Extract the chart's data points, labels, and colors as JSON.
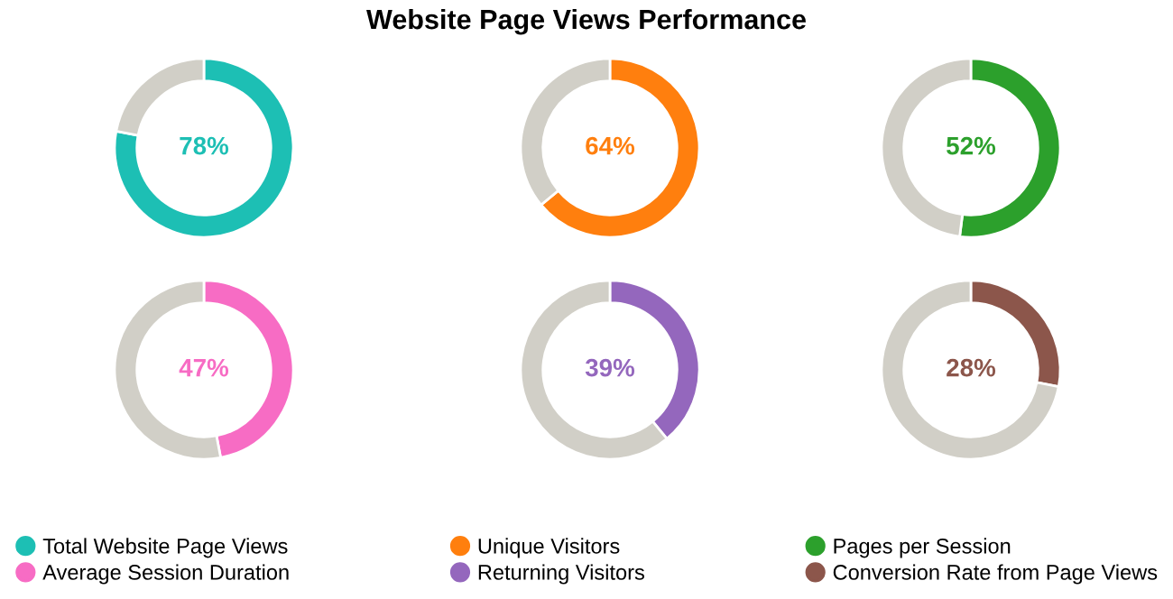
{
  "chart_data": [
    {
      "type": "donut",
      "categories": [
        "Total Website Page Views",
        null
      ],
      "values": [
        78,
        22
      ],
      "colors": [
        "#1dbfb4",
        "#d1cfc7"
      ],
      "value_labels": [
        "78%",
        null
      ],
      "legend": "bottom"
    },
    {
      "type": "donut",
      "title": "Website Page Views Performance",
      "categories": [
        "Unique Visitors",
        null
      ],
      "values": [
        64,
        36
      ],
      "colors": [
        "#ff7f0e",
        "#d1cfc7"
      ],
      "value_labels": [
        "64%",
        null
      ],
      "legend": "bottom"
    },
    {
      "type": "donut",
      "categories": [
        "Pages per Session",
        null
      ],
      "values": [
        52,
        48
      ],
      "colors": [
        "#2ca02c",
        "#d1cfc7"
      ],
      "value_labels": [
        "52%",
        null
      ],
      "legend": "bottom"
    },
    {
      "type": "donut",
      "categories": [
        "Average Session Duration",
        null
      ],
      "values": [
        47,
        53
      ],
      "colors": [
        "#f76cc4",
        "#d1cfc7"
      ],
      "value_labels": [
        "47%",
        null
      ],
      "legend": "bottom"
    },
    {
      "type": "donut",
      "categories": [
        "Returning Visitors",
        null
      ],
      "values": [
        39,
        61
      ],
      "colors": [
        "#9467bd",
        "#d1cfc7"
      ],
      "value_labels": [
        "39%",
        null
      ],
      "legend": "bottom"
    },
    {
      "type": "donut",
      "categories": [
        "Conversion Rate from Page Views",
        null
      ],
      "values": [
        28,
        72
      ],
      "colors": [
        "#8c564b",
        "#d1cfc7"
      ],
      "value_labels": [
        "28%",
        null
      ],
      "legend": "bottom"
    }
  ]
}
